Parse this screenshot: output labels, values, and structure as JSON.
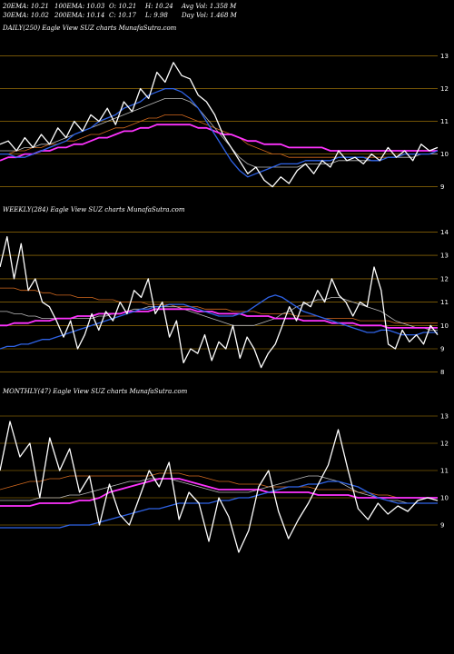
{
  "header": {
    "row1": [
      {
        "label": "20EMA: 10.21"
      },
      {
        "label": "100EMA: 10.03"
      },
      {
        "label": "O: 10.21"
      },
      {
        "label": "H: 10.24"
      },
      {
        "label": "Avg Vol: 1.358  M"
      }
    ],
    "row2": [
      {
        "label": "30EMA: 10.02"
      },
      {
        "label": "200EMA: 10.14"
      },
      {
        "label": "C: 10.17"
      },
      {
        "label": "L: 9.98"
      },
      {
        "label": "Day Vol: 1.468  M"
      }
    ]
  },
  "colors": {
    "background": "#000000",
    "price": "#ffffff",
    "ema_blue": "#2f63e6",
    "ema_magenta": "#ff33ff",
    "ema_orange": "#d2691e",
    "ema_grey": "#bbbbbb",
    "level_line": "#b8860b"
  },
  "chart_data": [
    {
      "type": "line",
      "title": "DAILY(250) Eagle  View  SUZ charts MunafaSutra.com",
      "ylim": [
        8.6,
        13.6
      ],
      "yticks": [
        "13",
        "12",
        "11",
        "10",
        "9"
      ],
      "level_lines": [
        13,
        12,
        11,
        10,
        9
      ],
      "series": [
        {
          "role": "price",
          "values": [
            10.3,
            10.4,
            10.1,
            10.5,
            10.2,
            10.6,
            10.3,
            10.8,
            10.5,
            11.0,
            10.7,
            11.2,
            11.0,
            11.4,
            10.9,
            11.6,
            11.3,
            12.0,
            11.7,
            12.5,
            12.2,
            12.8,
            12.4,
            12.3,
            11.8,
            11.6,
            11.2,
            10.6,
            10.2,
            9.8,
            9.4,
            9.6,
            9.2,
            9.0,
            9.3,
            9.1,
            9.5,
            9.7,
            9.4,
            9.8,
            9.6,
            10.1,
            9.8,
            9.9,
            9.7,
            10.0,
            9.8,
            10.2,
            9.9,
            10.1,
            9.8,
            10.3,
            10.1,
            10.2
          ]
        },
        {
          "role": "ema_blue",
          "values": [
            10.0,
            10.0,
            9.9,
            9.9,
            10.0,
            10.1,
            10.2,
            10.3,
            10.4,
            10.6,
            10.7,
            10.8,
            11.0,
            11.1,
            11.2,
            11.4,
            11.5,
            11.6,
            11.8,
            11.9,
            12.0,
            12.0,
            11.9,
            11.7,
            11.4,
            11.0,
            10.6,
            10.2,
            9.8,
            9.5,
            9.3,
            9.4,
            9.5,
            9.6,
            9.7,
            9.7,
            9.7,
            9.8,
            9.8,
            9.8,
            9.8,
            9.9,
            9.9,
            9.9,
            9.9,
            9.8,
            9.8,
            9.9,
            9.9,
            10.0,
            10.0,
            10.0,
            10.0,
            10.1
          ]
        },
        {
          "role": "ema_magenta",
          "values": [
            9.8,
            9.9,
            9.9,
            10.0,
            10.0,
            10.1,
            10.1,
            10.2,
            10.2,
            10.3,
            10.3,
            10.4,
            10.5,
            10.5,
            10.6,
            10.7,
            10.7,
            10.8,
            10.8,
            10.9,
            10.9,
            10.9,
            10.9,
            10.9,
            10.8,
            10.8,
            10.7,
            10.6,
            10.6,
            10.5,
            10.4,
            10.4,
            10.3,
            10.3,
            10.3,
            10.2,
            10.2,
            10.2,
            10.2,
            10.2,
            10.1,
            10.1,
            10.1,
            10.1,
            10.1,
            10.1,
            10.1,
            10.1,
            10.1,
            10.1,
            10.1,
            10.1,
            10.1,
            10.1
          ]
        },
        {
          "role": "ema_orange",
          "values": [
            10.0,
            10.0,
            10.1,
            10.1,
            10.2,
            10.2,
            10.3,
            10.3,
            10.4,
            10.4,
            10.5,
            10.6,
            10.6,
            10.7,
            10.8,
            10.8,
            10.9,
            11.0,
            11.1,
            11.1,
            11.2,
            11.2,
            11.2,
            11.1,
            11.0,
            10.9,
            10.8,
            10.7,
            10.6,
            10.5,
            10.3,
            10.2,
            10.1,
            10.0,
            10.0,
            9.9,
            9.9,
            9.9,
            9.9,
            9.9,
            9.9,
            9.9,
            9.9,
            9.9,
            9.9,
            9.9,
            9.9,
            9.9,
            9.9,
            10.0,
            10.0,
            10.0,
            10.0,
            10.0
          ]
        },
        {
          "role": "ema_grey",
          "values": [
            10.1,
            10.1,
            10.1,
            10.2,
            10.2,
            10.3,
            10.3,
            10.4,
            10.5,
            10.6,
            10.7,
            10.8,
            10.9,
            11.0,
            11.1,
            11.2,
            11.3,
            11.4,
            11.5,
            11.6,
            11.7,
            11.7,
            11.7,
            11.6,
            11.4,
            11.1,
            10.8,
            10.5,
            10.2,
            9.9,
            9.7,
            9.6,
            9.6,
            9.6,
            9.6,
            9.6,
            9.6,
            9.7,
            9.7,
            9.7,
            9.7,
            9.8,
            9.8,
            9.8,
            9.8,
            9.8,
            9.8,
            9.9,
            9.9,
            9.9,
            9.9,
            10.0,
            10.0,
            10.0
          ]
        }
      ]
    },
    {
      "type": "line",
      "title": "WEEKLY(284) Eagle  View  SUZ charts MunafaSutra.com",
      "ylim": [
        7.6,
        14.6
      ],
      "yticks": [
        "14",
        "13",
        "12",
        "11",
        "10",
        "9",
        "8"
      ],
      "level_lines": [
        14,
        13,
        12,
        11,
        10,
        9,
        8
      ],
      "series": [
        {
          "role": "price",
          "values": [
            12.5,
            13.8,
            12.0,
            13.5,
            11.5,
            12.0,
            11.0,
            10.8,
            10.2,
            9.5,
            10.2,
            9.0,
            9.6,
            10.5,
            9.8,
            10.6,
            10.2,
            11.0,
            10.5,
            11.5,
            11.2,
            12.0,
            10.5,
            11.0,
            9.5,
            10.2,
            8.4,
            9.0,
            8.8,
            9.6,
            8.5,
            9.3,
            9.0,
            10.0,
            8.6,
            9.5,
            9.0,
            8.2,
            8.8,
            9.2,
            10.0,
            10.8,
            10.2,
            11.0,
            10.8,
            11.5,
            11.0,
            12.0,
            11.3,
            11.0,
            10.4,
            11.0,
            10.8,
            12.5,
            11.5,
            9.2,
            9.0,
            9.8,
            9.3,
            9.6,
            9.2,
            10.0,
            9.6
          ]
        },
        {
          "role": "ema_blue",
          "values": [
            9.0,
            9.1,
            9.1,
            9.2,
            9.2,
            9.3,
            9.4,
            9.4,
            9.5,
            9.6,
            9.7,
            9.8,
            9.9,
            10.0,
            10.1,
            10.2,
            10.3,
            10.4,
            10.5,
            10.6,
            10.7,
            10.7,
            10.8,
            10.8,
            10.9,
            10.9,
            10.9,
            10.8,
            10.7,
            10.6,
            10.5,
            10.4,
            10.4,
            10.4,
            10.5,
            10.6,
            10.8,
            11.0,
            11.2,
            11.3,
            11.2,
            11.0,
            10.8,
            10.6,
            10.5,
            10.4,
            10.3,
            10.2,
            10.1,
            10.0,
            9.9,
            9.8,
            9.7,
            9.7,
            9.8,
            9.8,
            9.7,
            9.6,
            9.6,
            9.6,
            9.7,
            9.7,
            9.7
          ]
        },
        {
          "role": "ema_magenta",
          "values": [
            10.0,
            10.0,
            10.1,
            10.1,
            10.1,
            10.2,
            10.2,
            10.2,
            10.3,
            10.3,
            10.3,
            10.4,
            10.4,
            10.4,
            10.5,
            10.5,
            10.5,
            10.5,
            10.6,
            10.6,
            10.6,
            10.6,
            10.7,
            10.7,
            10.7,
            10.7,
            10.7,
            10.7,
            10.6,
            10.6,
            10.6,
            10.5,
            10.5,
            10.5,
            10.5,
            10.4,
            10.4,
            10.4,
            10.4,
            10.3,
            10.3,
            10.3,
            10.3,
            10.2,
            10.2,
            10.2,
            10.2,
            10.1,
            10.1,
            10.1,
            10.1,
            10.0,
            10.0,
            10.0,
            10.0,
            9.9,
            9.9,
            9.9,
            9.9,
            9.9,
            9.9,
            9.9,
            9.9
          ]
        },
        {
          "role": "ema_orange",
          "values": [
            11.6,
            11.6,
            11.6,
            11.5,
            11.5,
            11.5,
            11.4,
            11.4,
            11.3,
            11.3,
            11.3,
            11.2,
            11.2,
            11.2,
            11.1,
            11.1,
            11.1,
            11.0,
            11.0,
            11.0,
            11.0,
            10.9,
            10.9,
            10.9,
            10.9,
            10.8,
            10.8,
            10.8,
            10.8,
            10.7,
            10.7,
            10.7,
            10.7,
            10.6,
            10.6,
            10.6,
            10.6,
            10.5,
            10.5,
            10.5,
            10.5,
            10.5,
            10.4,
            10.4,
            10.4,
            10.4,
            10.3,
            10.3,
            10.3,
            10.3,
            10.3,
            10.2,
            10.2,
            10.2,
            10.2,
            10.2,
            10.1,
            10.1,
            10.1,
            10.1,
            10.1,
            10.1,
            10.1
          ]
        },
        {
          "role": "ema_grey",
          "values": [
            10.6,
            10.6,
            10.5,
            10.5,
            10.4,
            10.4,
            10.3,
            10.3,
            10.3,
            10.3,
            10.3,
            10.3,
            10.3,
            10.3,
            10.4,
            10.4,
            10.5,
            10.5,
            10.6,
            10.7,
            10.7,
            10.8,
            10.8,
            10.8,
            10.8,
            10.8,
            10.7,
            10.6,
            10.5,
            10.4,
            10.3,
            10.2,
            10.1,
            10.0,
            10.0,
            10.0,
            10.0,
            10.1,
            10.2,
            10.3,
            10.5,
            10.6,
            10.8,
            10.9,
            11.0,
            11.1,
            11.1,
            11.2,
            11.2,
            11.1,
            11.0,
            10.9,
            10.8,
            10.7,
            10.6,
            10.4,
            10.2,
            10.1,
            10.0,
            9.9,
            9.9,
            9.8,
            9.8
          ]
        }
      ]
    },
    {
      "type": "line",
      "title": "MONTHLY(47) Eagle  View  SUZ charts MunafaSutra.com",
      "ylim": [
        7.6,
        13.6
      ],
      "yticks": [
        "13",
        "12",
        "11",
        "10",
        "9"
      ],
      "level_lines": [
        13,
        12,
        11,
        10,
        9
      ],
      "series": [
        {
          "role": "price",
          "values": [
            11.0,
            12.8,
            11.5,
            12.0,
            10.0,
            12.2,
            11.0,
            11.8,
            10.2,
            10.8,
            9.0,
            10.5,
            9.4,
            9.0,
            10.0,
            11.0,
            10.4,
            11.3,
            9.2,
            10.2,
            9.8,
            8.4,
            10.0,
            9.3,
            8.0,
            8.8,
            10.4,
            11.0,
            9.5,
            8.5,
            9.2,
            9.8,
            10.5,
            11.2,
            12.5,
            11.0,
            9.6,
            9.2,
            9.8,
            9.4,
            9.7,
            9.5,
            9.9,
            10.0,
            9.9
          ]
        },
        {
          "role": "ema_blue",
          "values": [
            8.9,
            8.9,
            8.9,
            8.9,
            8.9,
            8.9,
            8.9,
            9.0,
            9.0,
            9.0,
            9.1,
            9.2,
            9.3,
            9.4,
            9.5,
            9.6,
            9.6,
            9.7,
            9.8,
            9.8,
            9.8,
            9.8,
            9.9,
            9.9,
            10.0,
            10.0,
            10.1,
            10.2,
            10.3,
            10.4,
            10.4,
            10.5,
            10.5,
            10.6,
            10.6,
            10.5,
            10.4,
            10.2,
            10.0,
            9.9,
            9.8,
            9.8,
            9.8,
            9.8,
            9.8
          ]
        },
        {
          "role": "ema_magenta",
          "values": [
            9.7,
            9.7,
            9.7,
            9.7,
            9.8,
            9.8,
            9.8,
            9.8,
            9.9,
            9.9,
            10.0,
            10.2,
            10.3,
            10.4,
            10.5,
            10.6,
            10.7,
            10.7,
            10.7,
            10.6,
            10.5,
            10.4,
            10.3,
            10.3,
            10.3,
            10.3,
            10.3,
            10.2,
            10.2,
            10.2,
            10.2,
            10.2,
            10.1,
            10.1,
            10.1,
            10.1,
            10.0,
            10.0,
            10.0,
            10.0,
            10.0,
            10.0,
            10.0,
            10.0,
            10.0
          ]
        },
        {
          "role": "ema_orange",
          "values": [
            10.3,
            10.4,
            10.5,
            10.6,
            10.6,
            10.7,
            10.7,
            10.8,
            10.8,
            10.8,
            10.8,
            10.8,
            10.8,
            10.8,
            10.8,
            10.8,
            10.9,
            10.9,
            10.9,
            10.8,
            10.8,
            10.7,
            10.6,
            10.6,
            10.5,
            10.5,
            10.5,
            10.4,
            10.4,
            10.4,
            10.4,
            10.4,
            10.3,
            10.3,
            10.3,
            10.3,
            10.2,
            10.2,
            10.1,
            10.1,
            10.0,
            10.0,
            10.0,
            10.0,
            9.9
          ]
        },
        {
          "role": "ema_grey",
          "values": [
            9.9,
            9.9,
            9.9,
            9.9,
            10.0,
            10.0,
            10.0,
            10.1,
            10.1,
            10.2,
            10.3,
            10.4,
            10.5,
            10.6,
            10.6,
            10.7,
            10.7,
            10.7,
            10.6,
            10.5,
            10.4,
            10.3,
            10.2,
            10.2,
            10.2,
            10.2,
            10.3,
            10.4,
            10.5,
            10.6,
            10.7,
            10.8,
            10.8,
            10.7,
            10.6,
            10.4,
            10.2,
            10.1,
            10.0,
            9.9,
            9.9,
            9.8,
            9.8,
            9.8,
            9.8
          ]
        }
      ]
    }
  ]
}
